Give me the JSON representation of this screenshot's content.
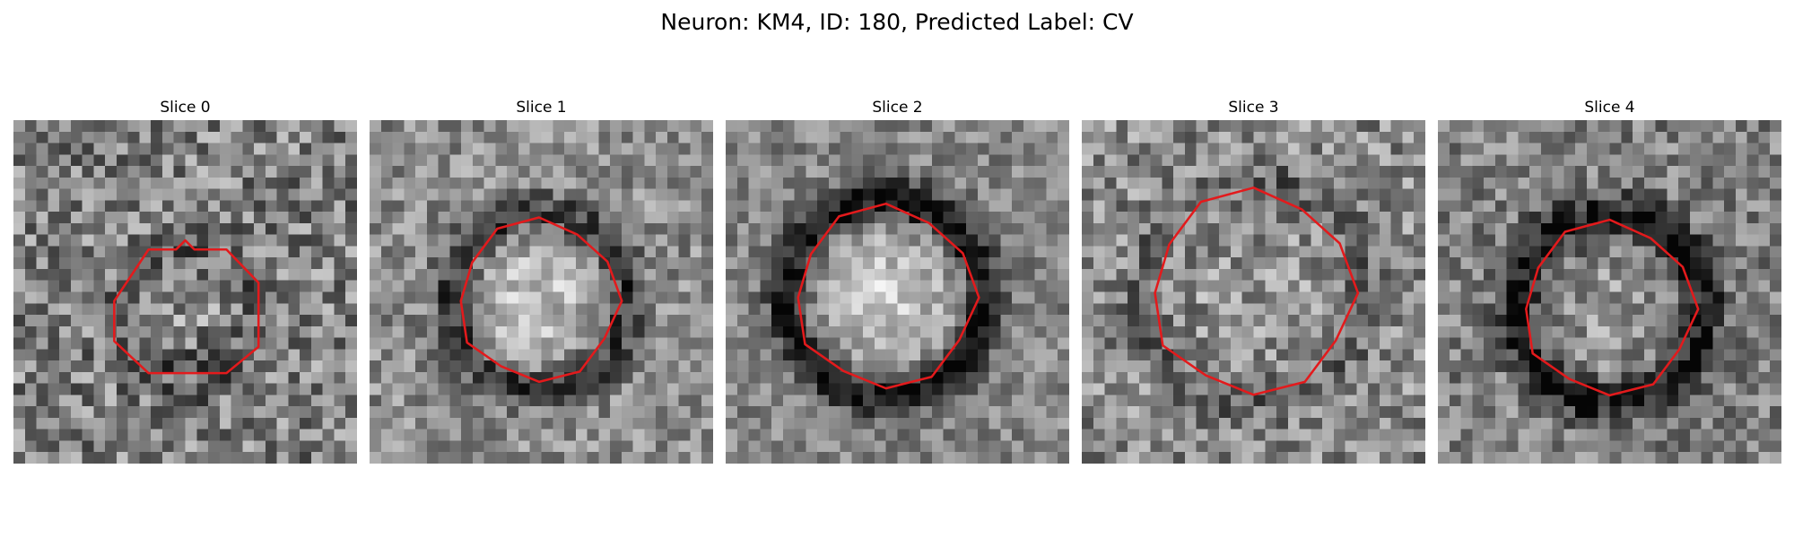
{
  "figure": {
    "title": "Neuron: KM4, ID: 180, Predicted Label: CV"
  },
  "colors": {
    "background": "#ffffff",
    "contour": "#e31a1c",
    "text": "#000000"
  },
  "slices": [
    {
      "title": "Slice 0"
    },
    {
      "title": "Slice 1"
    },
    {
      "title": "Slice 2"
    },
    {
      "title": "Slice 3"
    },
    {
      "title": "Slice 4"
    }
  ]
}
